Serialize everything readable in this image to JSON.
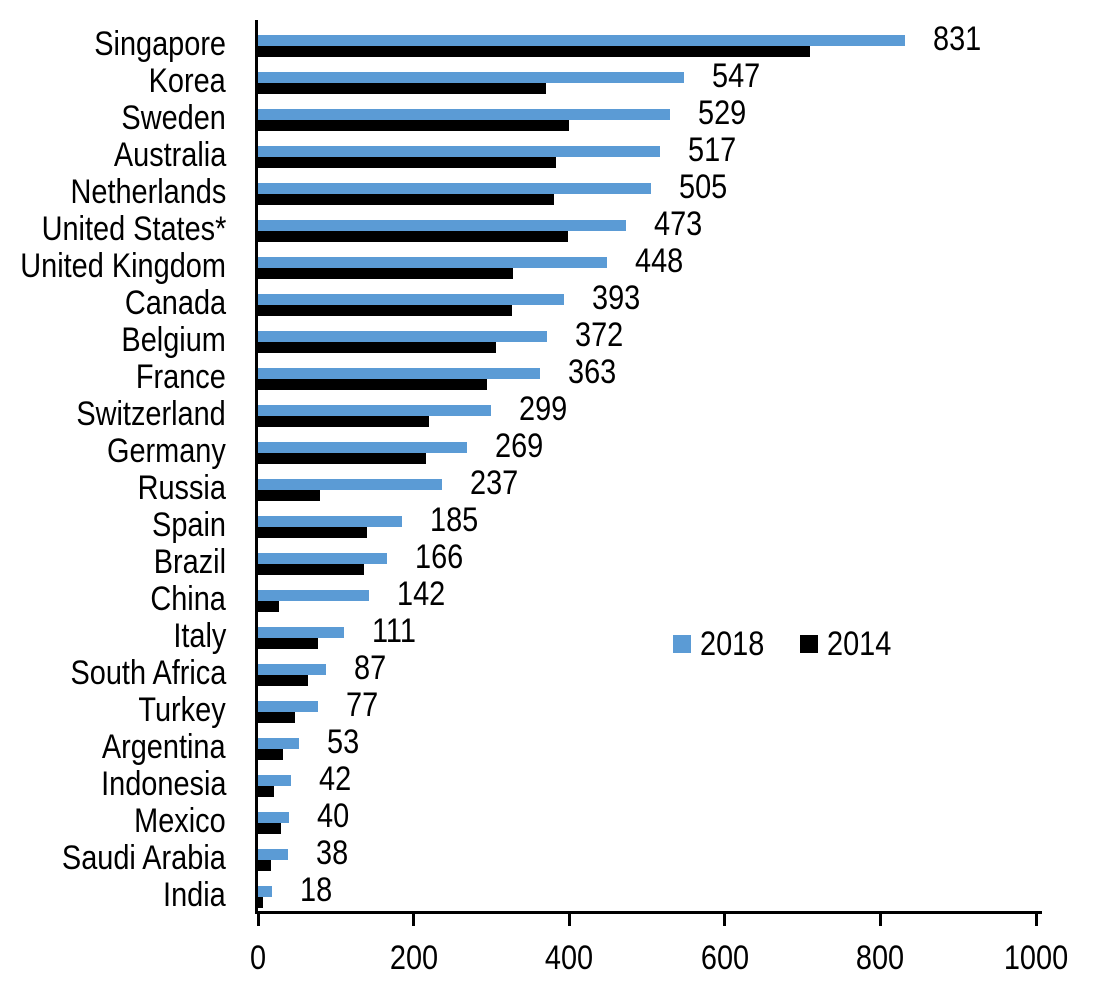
{
  "chart_data": {
    "type": "bar",
    "orientation": "horizontal",
    "title": "",
    "xlabel": "",
    "ylabel": "",
    "xlim": [
      0,
      1000
    ],
    "x_ticks": [
      0,
      200,
      400,
      600,
      800,
      1000
    ],
    "grid": false,
    "legend_position": "middle-right",
    "categories": [
      "Singapore",
      "Korea",
      "Sweden",
      "Australia",
      "Netherlands",
      "United States*",
      "United Kingdom",
      "Canada",
      "Belgium",
      "France",
      "Switzerland",
      "Germany",
      "Russia",
      "Spain",
      "Brazil",
      "China",
      "Italy",
      "South Africa",
      "Turkey",
      "Argentina",
      "Indonesia",
      "Mexico",
      "Saudi Arabia",
      "India"
    ],
    "series": [
      {
        "name": "2018",
        "color": "#5B9BD5",
        "values": [
          831,
          547,
          529,
          517,
          505,
          473,
          448,
          393,
          372,
          363,
          299,
          269,
          237,
          185,
          166,
          142,
          111,
          87,
          77,
          53,
          42,
          40,
          38,
          18
        ],
        "data_labels_shown": true
      },
      {
        "name": "2014",
        "color": "#000000",
        "values": [
          710,
          370,
          400,
          383,
          380,
          398,
          328,
          326,
          306,
          294,
          220,
          216,
          79,
          140,
          136,
          27,
          77,
          64,
          47,
          32,
          20,
          29,
          17,
          7
        ],
        "data_labels_shown": false
      }
    ],
    "axis_color": "#000000"
  }
}
